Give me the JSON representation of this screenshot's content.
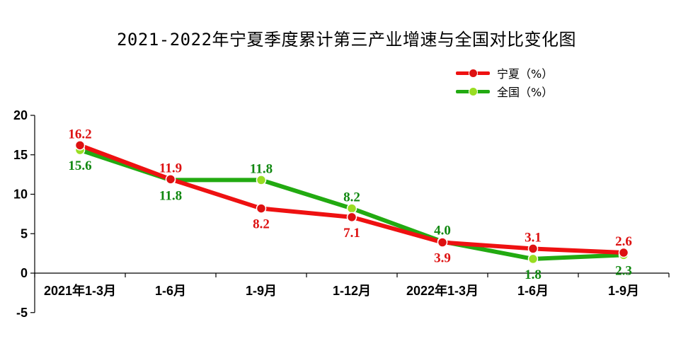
{
  "chart_data": {
    "type": "line",
    "title": "2021-2022年宁夏季度累计第三产业增速与全国对比变化图",
    "categories": [
      "2021年1-3月",
      "1-6月",
      "1-9月",
      "1-12月",
      "2022年1-3月",
      "1-6月",
      "1-9月"
    ],
    "series": [
      {
        "name": "宁夏（%）",
        "color": "#ee1111",
        "marker_color": "#dd1111",
        "values": [
          16.2,
          11.9,
          8.2,
          7.1,
          3.9,
          3.1,
          2.6
        ]
      },
      {
        "name": "全国（%）",
        "color": "#22aa11",
        "marker_color": "#99dd22",
        "values": [
          15.6,
          11.8,
          11.8,
          8.2,
          4.0,
          1.8,
          2.3
        ]
      }
    ],
    "ylim": [
      -5,
      20
    ],
    "yticks": [
      "20",
      "15",
      "10",
      "5",
      "0",
      "-5"
    ],
    "ytick_values": [
      20,
      15,
      10,
      5,
      0,
      -5
    ],
    "grid": false,
    "legend_position": "top-right",
    "label_colors": {
      "ningxia": "#dd1111",
      "national": "#118811"
    }
  }
}
